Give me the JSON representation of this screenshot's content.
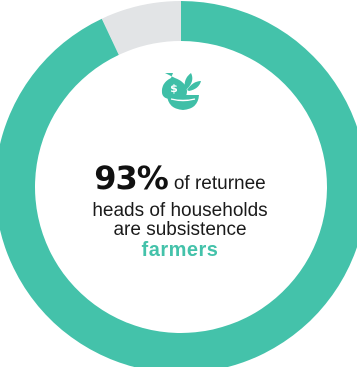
{
  "chart_data": {
    "type": "pie",
    "values": [
      93,
      7
    ],
    "title": ""
  },
  "colors": {
    "primary": "#44C2AA",
    "remainder": "#E2E4E6",
    "icon": "#3FBFA7"
  },
  "icon": "money-bag-and-plant-bowl-icon",
  "text": {
    "percent": "93%",
    "line1_rest": "of returnee",
    "line2": "heads of households",
    "line3": "are subsistence",
    "highlight": "farmers"
  }
}
